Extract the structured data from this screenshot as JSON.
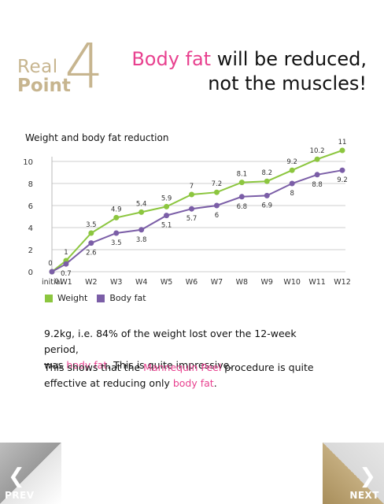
{
  "brand": {
    "real": "Real",
    "point": "Point",
    "number": "4"
  },
  "headline": {
    "line1_pink": "Body fat",
    "line1_rest": " will be reduced,",
    "line2": "not the muscles!"
  },
  "colors": {
    "pink": "#e8418f",
    "gold": "#c7b58f",
    "weight": "#8cc63f",
    "bodyfat": "#7b5ea7"
  },
  "chart_data": {
    "type": "line",
    "title": "Weight and body fat reduction",
    "categories": [
      "initial",
      "W1",
      "W2",
      "W3",
      "W4",
      "W5",
      "W6",
      "W7",
      "W8",
      "W9",
      "W10",
      "W11",
      "W12"
    ],
    "series": [
      {
        "name": "Weight",
        "values": [
          0,
          1,
          3.5,
          4.9,
          5.4,
          5.9,
          7,
          7.2,
          8.1,
          8.2,
          9.2,
          10.2,
          11
        ]
      },
      {
        "name": "Body fat",
        "values": [
          0,
          0.7,
          2.6,
          3.5,
          3.8,
          5.1,
          5.7,
          6,
          6.8,
          6.9,
          8,
          8.8,
          9.2
        ]
      }
    ],
    "weight_labels": [
      "0",
      "1",
      "3.5",
      "4.9",
      "5.4",
      "5.9",
      "7",
      "7.2",
      "8.1",
      "8.2",
      "9.2",
      "10.2",
      "11"
    ],
    "fat_labels": [
      "0",
      "0.7",
      "2.6",
      "3.5",
      "3.8",
      "5.1",
      "5.7",
      "6",
      "6.8",
      "6.9",
      "8",
      "8.8",
      "9.2"
    ],
    "yticks": [
      "0",
      "2",
      "4",
      "6",
      "8",
      "10"
    ],
    "ylim": [
      0,
      11
    ],
    "grid": true,
    "legend": "bottom-left"
  },
  "legend": {
    "weight": "Weight",
    "bodyfat": "Body fat"
  },
  "text": {
    "p1_a": "9.2kg, i.e. 84% of the weight lost over the 12-week period,",
    "p1_b": "was ",
    "p1_pink": "body fat",
    "p1_c": ". This is quite impressive.",
    "p2_a": "This shows that the ",
    "p2_pink1": "Mannequin Peel",
    "p2_b": " procedure is quite",
    "p2_c": "effective at reducing only ",
    "p2_pink2": "body fat",
    "p2_d": "."
  },
  "nav": {
    "prev": "PREV",
    "next": "NEXT",
    "prev_icon": "chevron-left-icon",
    "next_icon": "chevron-right-icon"
  }
}
